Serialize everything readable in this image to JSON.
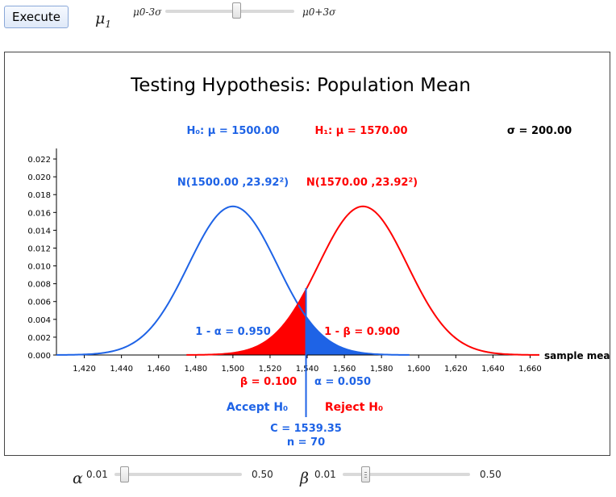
{
  "toolbar": {
    "execute_label": "Execute"
  },
  "mu1_control": {
    "symbol": "μ1",
    "min_label": "μ0-3σ",
    "max_label": "μ0+3σ",
    "fraction": 0.55
  },
  "alpha_control": {
    "symbol": "α",
    "min_label": "0.01",
    "max_label": "0.50",
    "value": 0.05
  },
  "beta_control": {
    "symbol": "β",
    "min_label": "0.01",
    "max_label": "0.50",
    "value": 0.1
  },
  "colors": {
    "h0": "#1e63e6",
    "h1": "#ff0000",
    "text": "#000000"
  },
  "chart_data": {
    "type": "line",
    "title": "Testing Hypothesis: Population Mean",
    "h0_label": "H₀: μ = 1500.00",
    "h1_label": "H₁: μ = 1570.00",
    "sigma_label": "σ = 200.00",
    "dist0_label": "N(1500.00 ,23.92²)",
    "dist1_label": "N(1570.00 ,23.92²)",
    "power_label": "1 - α = 0.950",
    "one_minus_beta_label": "1 - β = 0.900",
    "beta_label": "β = 0.100",
    "alpha_label": "α = 0.050",
    "accept_label": "Accept H₀",
    "reject_label": "Reject H₀",
    "critical_label": "C = 1539.35",
    "n_label": "n = 70",
    "xlabel": "sample mea",
    "mu0": 1500,
    "mu1": 1570,
    "se": 23.92,
    "critical": 1539.35,
    "xlim": [
      1405,
      1665
    ],
    "ylim": [
      0,
      0.023
    ],
    "xticks": [
      1420,
      1440,
      1460,
      1480,
      1500,
      1520,
      1540,
      1560,
      1580,
      1600,
      1620,
      1640,
      1660
    ],
    "xtick_labels": [
      "1,420",
      "1,440",
      "1,460",
      "1,480",
      "1,500",
      "1,520",
      "1,540",
      "1,560",
      "1,580",
      "1,600",
      "1,620",
      "1,640",
      "1,660"
    ],
    "yticks": [
      0,
      0.002,
      0.004,
      0.006,
      0.008,
      0.01,
      0.012,
      0.014,
      0.016,
      0.018,
      0.02,
      0.022
    ],
    "ytick_labels": [
      "0.000",
      "0.002",
      "0.004",
      "0.006",
      "0.008",
      "0.010",
      "0.012",
      "0.014",
      "0.016",
      "0.018",
      "0.020",
      "0.022"
    ],
    "series": [
      {
        "name": "N(1500.00 ,23.92²)",
        "mean": 1500,
        "sd": 23.92,
        "range": [
          1405,
          1595
        ]
      },
      {
        "name": "N(1570.00 ,23.92²)",
        "mean": 1570,
        "sd": 23.92,
        "range": [
          1475,
          1665
        ]
      }
    ]
  }
}
